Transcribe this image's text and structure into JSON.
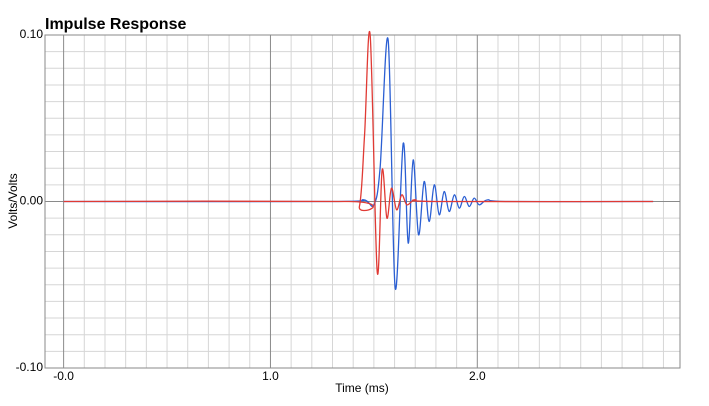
{
  "chart_data": {
    "type": "line",
    "title": "Impulse Response",
    "xlabel": "Time (ms)",
    "ylabel": "Volts/Volts",
    "xlim": [
      -0.09,
      2.98
    ],
    "ylim": [
      -0.1,
      0.1
    ],
    "xticks": [
      {
        "value": 0,
        "label": "-0.0"
      },
      {
        "value": 1,
        "label": "1.0"
      },
      {
        "value": 2,
        "label": "2.0"
      }
    ],
    "yticks": [
      {
        "value": -0.1,
        "label": "-0.10"
      },
      {
        "value": 0,
        "label": "0.00"
      },
      {
        "value": 0.1,
        "label": "0.10"
      }
    ],
    "x_minor_ticks": [
      0.1,
      0.2,
      0.3,
      0.4,
      0.5,
      0.6,
      0.7,
      0.8,
      0.9,
      1.1,
      1.2,
      1.3,
      1.4,
      1.5,
      1.6,
      1.7,
      1.8,
      1.9,
      2.1,
      2.2,
      2.3,
      2.4,
      2.5,
      2.6,
      2.7,
      2.8,
      2.9
    ],
    "y_minor_ticks": [
      -0.09,
      -0.08,
      -0.07,
      -0.06,
      -0.05,
      -0.04,
      -0.03,
      -0.02,
      -0.01,
      0.01,
      0.02,
      0.03,
      0.04,
      0.05,
      0.06,
      0.07,
      0.08,
      0.09
    ],
    "grid": true,
    "series": [
      {
        "color": "#2b5fd3",
        "x": [
          0,
          1.3,
          1.45,
          1.5,
          1.53,
          1.569,
          1.603,
          1.642,
          1.666,
          1.69,
          1.716,
          1.743,
          1.767,
          1.792,
          1.816,
          1.84,
          1.864,
          1.889,
          1.913,
          1.937,
          1.961,
          1.985,
          2.01,
          2.05,
          2.15,
          2.85
        ],
        "values": [
          0,
          0,
          0.001,
          -0.002,
          0.02,
          0.097,
          -0.052,
          0.035,
          -0.025,
          0.025,
          -0.02,
          0.012,
          -0.012,
          0.01,
          -0.008,
          0.006,
          -0.006,
          0.004,
          -0.004,
          0.003,
          -0.003,
          0.002,
          -0.002,
          0.001,
          0,
          0
        ]
      },
      {
        "color": "#e03a34",
        "x": [
          0,
          1.38,
          1.43,
          1.455,
          1.482,
          1.516,
          1.54,
          1.563,
          1.585,
          1.61,
          1.635,
          1.66,
          1.7,
          1.8,
          2.85
        ],
        "values": [
          0,
          0,
          -0.003,
          0.04,
          0.1,
          -0.042,
          0.019,
          -0.01,
          0.008,
          -0.005,
          0.004,
          -0.002,
          0.001,
          0,
          0
        ]
      }
    ]
  }
}
